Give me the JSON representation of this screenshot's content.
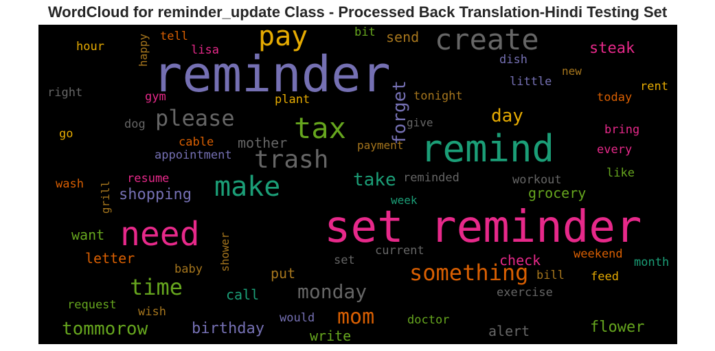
{
  "title": "WordCloud for reminder_update Class - Processed Back Translation-Hindi Testing Set",
  "chart_data": {
    "type": "wordcloud",
    "title": "WordCloud for reminder_update Class - Processed Back Translation-Hindi Testing Set",
    "background": "#000000",
    "words": [
      {
        "text": "set reminder",
        "color": "#e7298a"
      },
      {
        "text": "reminder",
        "color": "#7570b3"
      },
      {
        "text": "remind",
        "color": "#1b9e77"
      },
      {
        "text": "create",
        "color": "#666666"
      },
      {
        "text": "need",
        "color": "#e7298a"
      },
      {
        "text": "pay",
        "color": "#e6ab02"
      },
      {
        "text": "tax",
        "color": "#66a61e"
      },
      {
        "text": "make",
        "color": "#1b9e77"
      },
      {
        "text": "trash",
        "color": "#666666"
      },
      {
        "text": "please",
        "color": "#666666"
      },
      {
        "text": "something",
        "color": "#d95f02"
      },
      {
        "text": "time",
        "color": "#66a61e"
      },
      {
        "text": "mom",
        "color": "#d95f02"
      },
      {
        "text": "monday",
        "color": "#666666"
      },
      {
        "text": "tommorow",
        "color": "#66a61e"
      },
      {
        "text": "day",
        "color": "#e6ab02"
      },
      {
        "text": "take",
        "color": "#1b9e77"
      },
      {
        "text": "forget",
        "color": "#7570b3"
      },
      {
        "text": "steak",
        "color": "#e7298a"
      },
      {
        "text": "flower",
        "color": "#66a61e"
      },
      {
        "text": "birthday",
        "color": "#7570b3"
      },
      {
        "text": "shopping",
        "color": "#7570b3"
      },
      {
        "text": "mother",
        "color": "#666666"
      },
      {
        "text": "grocery",
        "color": "#66a61e"
      },
      {
        "text": "check",
        "color": "#e7298a"
      },
      {
        "text": "alert",
        "color": "#666666"
      },
      {
        "text": "write",
        "color": "#66a61e"
      },
      {
        "text": "send",
        "color": "#a6761d"
      },
      {
        "text": "letter",
        "color": "#d95f02"
      },
      {
        "text": "want",
        "color": "#66a61e"
      },
      {
        "text": "call",
        "color": "#1b9e77"
      },
      {
        "text": "put",
        "color": "#a6761d"
      },
      {
        "text": "tonight",
        "color": "#a6761d"
      },
      {
        "text": "little",
        "color": "#7570b3"
      },
      {
        "text": "today",
        "color": "#d95f02"
      },
      {
        "text": "rent",
        "color": "#e6ab02"
      },
      {
        "text": "new",
        "color": "#a6761d"
      },
      {
        "text": "dish",
        "color": "#7570b3"
      },
      {
        "text": "bring",
        "color": "#e7298a"
      },
      {
        "text": "every",
        "color": "#e7298a"
      },
      {
        "text": "like",
        "color": "#66a61e"
      },
      {
        "text": "workout",
        "color": "#666666"
      },
      {
        "text": "reminded",
        "color": "#666666"
      },
      {
        "text": "week",
        "color": "#1b9e77"
      },
      {
        "text": "payment",
        "color": "#a6761d"
      },
      {
        "text": "give",
        "color": "#666666"
      },
      {
        "text": "plant",
        "color": "#e6ab02"
      },
      {
        "text": "gym",
        "color": "#e7298a"
      },
      {
        "text": "dog",
        "color": "#666666"
      },
      {
        "text": "cable",
        "color": "#d95f02"
      },
      {
        "text": "appointment",
        "color": "#7570b3"
      },
      {
        "text": "resume",
        "color": "#e7298a"
      },
      {
        "text": "wash",
        "color": "#d95f02"
      },
      {
        "text": "grill",
        "color": "#a6761d"
      },
      {
        "text": "go",
        "color": "#e6ab02"
      },
      {
        "text": "right",
        "color": "#666666"
      },
      {
        "text": "hour",
        "color": "#e6ab02"
      },
      {
        "text": "happy",
        "color": "#a6761d"
      },
      {
        "text": "tell",
        "color": "#d95f02"
      },
      {
        "text": "lisa",
        "color": "#e7298a"
      },
      {
        "text": "bit",
        "color": "#66a61e"
      },
      {
        "text": "baby",
        "color": "#a6761d"
      },
      {
        "text": "shower",
        "color": "#a6761d"
      },
      {
        "text": "request",
        "color": "#66a61e"
      },
      {
        "text": "wish",
        "color": "#a6761d"
      },
      {
        "text": "would",
        "color": "#7570b3"
      },
      {
        "text": "set",
        "color": "#666666"
      },
      {
        "text": "current",
        "color": "#666666"
      },
      {
        "text": "exercise",
        "color": "#666666"
      },
      {
        "text": "doctor",
        "color": "#66a61e"
      },
      {
        "text": "weekend",
        "color": "#d95f02"
      },
      {
        "text": "month",
        "color": "#1b9e77"
      },
      {
        "text": "feed",
        "color": "#e6ab02"
      },
      {
        "text": "bill",
        "color": "#a6761d"
      }
    ]
  }
}
